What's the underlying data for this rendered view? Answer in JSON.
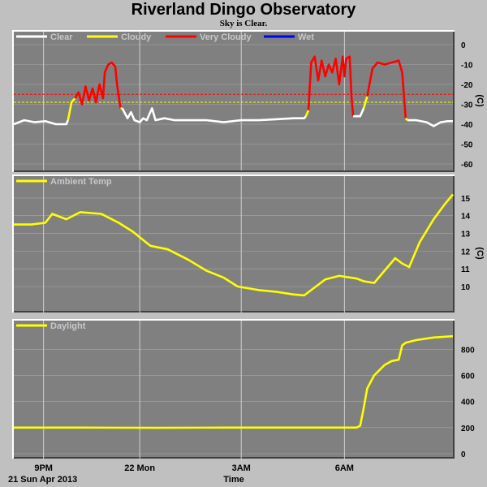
{
  "title": "Riverland Dingo Observatory",
  "subtitle": "Sky is Clear.",
  "xlabel": "Time",
  "date_label": "21 Sun Apr 2013",
  "x_ticks": [
    "9PM",
    "22 Mon",
    "3AM",
    "6AM"
  ],
  "colors": {
    "background": "#c0c0c0",
    "panel": "#808080",
    "grid": "#d0d0d0",
    "clear": "#ffffff",
    "cloudy": "#ffff00",
    "very_cloudy": "#ff0000",
    "wet": "#0000ff",
    "ambient": "#ffff00",
    "daylight": "#ffff00"
  },
  "chart_data": [
    {
      "type": "line",
      "name": "sky-temperature",
      "x_unit": "hours after 8 PM, 21 Apr 2013",
      "xlim": [
        0,
        12.55
      ],
      "ylim": [
        -60,
        0
      ],
      "yticks": [
        0,
        -10,
        -20,
        -30,
        -40,
        -50,
        -60
      ],
      "unit": "(C)",
      "legend": [
        {
          "label": "Clear",
          "color": "#ffffff"
        },
        {
          "label": "Cloudy",
          "color": "#ffff00"
        },
        {
          "label": "Very Cloudy",
          "color": "#ff0000"
        },
        {
          "label": "Wet",
          "color": "#0000ff"
        }
      ],
      "thresholds": [
        {
          "value": -25,
          "color": "#ff0000"
        },
        {
          "value": -29,
          "color": "#ffff00"
        }
      ],
      "series": [
        {
          "color": "#ffffff",
          "points": [
            [
              0,
              -40
            ],
            [
              0.3,
              -38
            ],
            [
              0.6,
              -39
            ],
            [
              0.9,
              -38.5
            ],
            [
              1.2,
              -40
            ],
            [
              1.5,
              -40
            ],
            [
              1.55,
              -38
            ]
          ]
        },
        {
          "color": "#ffff00",
          "points": [
            [
              1.55,
              -38
            ],
            [
              1.65,
              -29
            ],
            [
              1.75,
              -27
            ]
          ]
        },
        {
          "color": "#ff0000",
          "points": [
            [
              1.75,
              -27
            ],
            [
              1.85,
              -24
            ],
            [
              1.95,
              -30
            ],
            [
              2.05,
              -21
            ],
            [
              2.15,
              -28
            ],
            [
              2.25,
              -22
            ],
            [
              2.35,
              -29
            ],
            [
              2.45,
              -20
            ],
            [
              2.55,
              -27
            ],
            [
              2.6,
              -14
            ],
            [
              2.7,
              -10
            ],
            [
              2.8,
              -9
            ],
            [
              2.9,
              -11
            ],
            [
              2.95,
              -20
            ],
            [
              3.05,
              -32
            ]
          ]
        },
        {
          "color": "#ffff00",
          "points": [
            [
              3.05,
              -32
            ],
            [
              3.1,
              -32
            ]
          ]
        },
        {
          "color": "#ffffff",
          "points": [
            [
              3.1,
              -32
            ],
            [
              3.25,
              -37
            ],
            [
              3.35,
              -34
            ],
            [
              3.45,
              -38
            ],
            [
              3.6,
              -39
            ],
            [
              3.7,
              -37
            ],
            [
              3.8,
              -38
            ],
            [
              3.95,
              -32
            ],
            [
              4.05,
              -38
            ],
            [
              4.3,
              -37
            ],
            [
              4.6,
              -38
            ],
            [
              5.0,
              -38
            ],
            [
              5.5,
              -38
            ],
            [
              6.0,
              -39
            ],
            [
              6.5,
              -38
            ],
            [
              7.0,
              -38
            ],
            [
              7.5,
              -37.5
            ],
            [
              8.0,
              -37
            ],
            [
              8.3,
              -37
            ],
            [
              8.35,
              -36
            ]
          ]
        },
        {
          "color": "#ffff00",
          "points": [
            [
              8.35,
              -36
            ],
            [
              8.42,
              -33
            ]
          ]
        },
        {
          "color": "#ff0000",
          "points": [
            [
              8.42,
              -33
            ],
            [
              8.5,
              -9
            ],
            [
              8.6,
              -6
            ],
            [
              8.7,
              -18
            ],
            [
              8.8,
              -8
            ],
            [
              8.9,
              -16
            ],
            [
              9.0,
              -10
            ],
            [
              9.1,
              -14
            ],
            [
              9.2,
              -7
            ],
            [
              9.3,
              -20
            ],
            [
              9.4,
              -6
            ],
            [
              9.45,
              -16
            ],
            [
              9.5,
              -7
            ],
            [
              9.6,
              -6
            ],
            [
              9.65,
              -26
            ],
            [
              9.7,
              -36
            ]
          ]
        },
        {
          "color": "#ffffff",
          "points": [
            [
              9.7,
              -36
            ],
            [
              9.9,
              -36
            ],
            [
              10.0,
              -32
            ]
          ]
        },
        {
          "color": "#ffff00",
          "points": [
            [
              10.0,
              -32
            ],
            [
              10.1,
              -26
            ]
          ]
        },
        {
          "color": "#ff0000",
          "points": [
            [
              10.1,
              -26
            ],
            [
              10.25,
              -12
            ],
            [
              10.4,
              -9
            ],
            [
              10.6,
              -10
            ],
            [
              10.8,
              -9
            ],
            [
              11.0,
              -8
            ],
            [
              11.1,
              -14
            ],
            [
              11.2,
              -37
            ]
          ]
        },
        {
          "color": "#ffff00",
          "points": [
            [
              11.2,
              -37
            ],
            [
              11.25,
              -38
            ]
          ]
        },
        {
          "color": "#ffffff",
          "points": [
            [
              11.25,
              -38
            ],
            [
              11.5,
              -38
            ],
            [
              11.8,
              -39
            ],
            [
              12.0,
              -41
            ],
            [
              12.2,
              -39
            ],
            [
              12.4,
              -38.5
            ],
            [
              12.55,
              -38.5
            ]
          ]
        }
      ]
    },
    {
      "type": "line",
      "name": "ambient-temperature",
      "x_unit": "hours after 8 PM, 21 Apr 2013",
      "xlim": [
        0,
        12.55
      ],
      "ylim": [
        8.9,
        15.5
      ],
      "yticks": [
        10,
        11,
        12,
        13,
        14,
        15
      ],
      "unit": "(C)",
      "legend": [
        {
          "label": "Ambient Temp",
          "color": "#ffff00"
        }
      ],
      "series": [
        {
          "color": "#ffff00",
          "points": [
            [
              0,
              13.5
            ],
            [
              0.5,
              13.5
            ],
            [
              0.9,
              13.6
            ],
            [
              1.1,
              14.1
            ],
            [
              1.5,
              13.8
            ],
            [
              1.9,
              14.2
            ],
            [
              2.5,
              14.1
            ],
            [
              3.0,
              13.6
            ],
            [
              3.4,
              13.1
            ],
            [
              3.9,
              12.3
            ],
            [
              4.4,
              12.1
            ],
            [
              5.0,
              11.5
            ],
            [
              5.5,
              10.9
            ],
            [
              6.0,
              10.5
            ],
            [
              6.4,
              10.0
            ],
            [
              7.0,
              9.8
            ],
            [
              7.5,
              9.7
            ],
            [
              8.0,
              9.55
            ],
            [
              8.3,
              9.5
            ],
            [
              8.5,
              9.8
            ],
            [
              8.9,
              10.4
            ],
            [
              9.3,
              10.6
            ],
            [
              9.8,
              10.45
            ],
            [
              10.0,
              10.3
            ],
            [
              10.3,
              10.2
            ],
            [
              10.6,
              10.9
            ],
            [
              10.9,
              11.6
            ],
            [
              11.1,
              11.3
            ],
            [
              11.3,
              11.1
            ],
            [
              11.6,
              12.5
            ],
            [
              12.0,
              13.8
            ],
            [
              12.3,
              14.6
            ],
            [
              12.55,
              15.2
            ]
          ]
        }
      ]
    },
    {
      "type": "line",
      "name": "daylight",
      "x_unit": "hours after 8 PM, 21 Apr 2013",
      "xlim": [
        0,
        12.55
      ],
      "ylim": [
        0,
        920
      ],
      "yticks": [
        0,
        200,
        400,
        600,
        800
      ],
      "legend": [
        {
          "label": "Daylight",
          "color": "#ffff00"
        }
      ],
      "series": [
        {
          "color": "#ffff00",
          "points": [
            [
              0,
              200
            ],
            [
              2,
              200
            ],
            [
              4,
              198
            ],
            [
              6,
              200
            ],
            [
              8,
              200
            ],
            [
              9.8,
              200
            ],
            [
              9.9,
              215
            ],
            [
              10.0,
              350
            ],
            [
              10.1,
              500
            ],
            [
              10.3,
              600
            ],
            [
              10.6,
              680
            ],
            [
              10.8,
              710
            ],
            [
              11.0,
              720
            ],
            [
              11.1,
              830
            ],
            [
              11.2,
              850
            ],
            [
              11.5,
              870
            ],
            [
              12.0,
              890
            ],
            [
              12.55,
              900
            ]
          ]
        }
      ]
    }
  ]
}
